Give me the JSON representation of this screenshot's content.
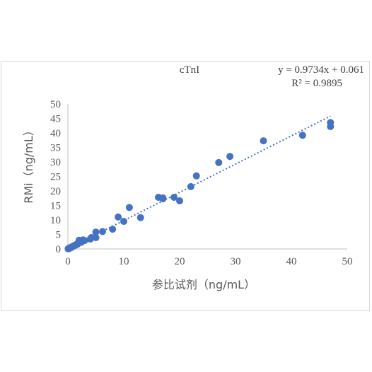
{
  "chart_data": {
    "type": "scatter",
    "title": "cTnI",
    "equation": "y = 0.9734x + 0.061",
    "r_squared": "R² = 0.9895",
    "xlabel": "参比试剂（ng/mL）",
    "ylabel": "RMi（ng/mL）",
    "xlim": [
      0,
      50
    ],
    "ylim": [
      0,
      50
    ],
    "x_ticks": [
      "0",
      "10",
      "20",
      "30",
      "40",
      "50"
    ],
    "y_ticks": [
      "0",
      "5",
      "10",
      "15",
      "20",
      "25",
      "30",
      "35",
      "40",
      "45",
      "50"
    ],
    "grid": false,
    "legend": "none",
    "marker_color": "#4472C4",
    "trendline": {
      "slope": 0.9734,
      "intercept": 0.061,
      "style": "dotted",
      "color": "#4472C4"
    },
    "points": [
      [
        0.05,
        0.05
      ],
      [
        0.1,
        0.1
      ],
      [
        0.15,
        0.2
      ],
      [
        0.2,
        0.15
      ],
      [
        0.25,
        0.3
      ],
      [
        0.3,
        0.25
      ],
      [
        0.35,
        0.4
      ],
      [
        0.4,
        0.35
      ],
      [
        0.5,
        0.45
      ],
      [
        0.55,
        0.6
      ],
      [
        0.6,
        0.5
      ],
      [
        0.7,
        0.7
      ],
      [
        0.8,
        0.75
      ],
      [
        0.9,
        0.85
      ],
      [
        1.0,
        1.0
      ],
      [
        1.1,
        1.05
      ],
      [
        1.2,
        1.2
      ],
      [
        1.3,
        1.25
      ],
      [
        1.4,
        1.4
      ],
      [
        1.5,
        1.5
      ],
      [
        1.7,
        1.6
      ],
      [
        1.8,
        2.0
      ],
      [
        2.0,
        2.2
      ],
      [
        2.2,
        2.5
      ],
      [
        2.4,
        2.3
      ],
      [
        2.5,
        2.8
      ],
      [
        2.7,
        3.1
      ],
      [
        3.0,
        2.9
      ],
      [
        2.0,
        3.0
      ],
      [
        4.0,
        3.4
      ],
      [
        4.2,
        3.9
      ],
      [
        5.0,
        3.9
      ],
      [
        5.0,
        5.8
      ],
      [
        6.2,
        6.0
      ],
      [
        8.0,
        6.8
      ],
      [
        9.0,
        11.0
      ],
      [
        10.0,
        9.5
      ],
      [
        11.0,
        14.3
      ],
      [
        13.0,
        10.8
      ],
      [
        16.2,
        17.8
      ],
      [
        17.0,
        17.6
      ],
      [
        17.0,
        17.3
      ],
      [
        19.0,
        17.8
      ],
      [
        20.0,
        16.6
      ],
      [
        22.0,
        21.5
      ],
      [
        23.0,
        25.2
      ],
      [
        27.0,
        29.8
      ],
      [
        29.0,
        31.9
      ],
      [
        35.0,
        37.3
      ],
      [
        42.0,
        39.2
      ],
      [
        47.0,
        43.6
      ],
      [
        47.0,
        42.2
      ]
    ]
  }
}
